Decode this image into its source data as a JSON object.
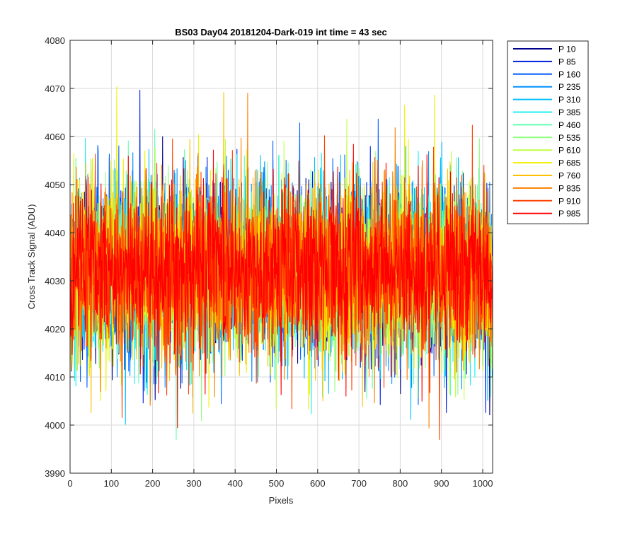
{
  "chart_data": {
    "type": "line",
    "title": "BS03 Day04 20181204-Dark-019 int time = 43 sec",
    "xlabel": "Pixels",
    "ylabel": "Cross Track Signal (ADU)",
    "xlim": [
      0,
      1024
    ],
    "ylim": [
      3990,
      4080
    ],
    "xticks": [
      0,
      100,
      200,
      300,
      400,
      500,
      600,
      700,
      800,
      900,
      1000
    ],
    "yticks": [
      3990,
      4000,
      4010,
      4020,
      4030,
      4040,
      4050,
      4060,
      4070,
      4080
    ],
    "grid": true,
    "legend_position": "outside-top-right",
    "noise_profile": {
      "mean": 4032,
      "std": 8.5,
      "min": 3997,
      "max": 4078,
      "num_pixels": 1024
    },
    "series": [
      {
        "name": "P 10",
        "color": "#00008f"
      },
      {
        "name": "P 85",
        "color": "#0020df"
      },
      {
        "name": "P 160",
        "color": "#0060ff"
      },
      {
        "name": "P 235",
        "color": "#0090ff"
      },
      {
        "name": "P 310",
        "color": "#00c0ff"
      },
      {
        "name": "P 385",
        "color": "#20efef"
      },
      {
        "name": "P 460",
        "color": "#60ffb0"
      },
      {
        "name": "P 535",
        "color": "#90ff80"
      },
      {
        "name": "P 610",
        "color": "#c0ff40"
      },
      {
        "name": "P 685",
        "color": "#f0f000"
      },
      {
        "name": "P 760",
        "color": "#ffc000"
      },
      {
        "name": "P 835",
        "color": "#ff8000"
      },
      {
        "name": "P 910",
        "color": "#ff4000"
      },
      {
        "name": "P 985",
        "color": "#ff0000"
      }
    ]
  }
}
